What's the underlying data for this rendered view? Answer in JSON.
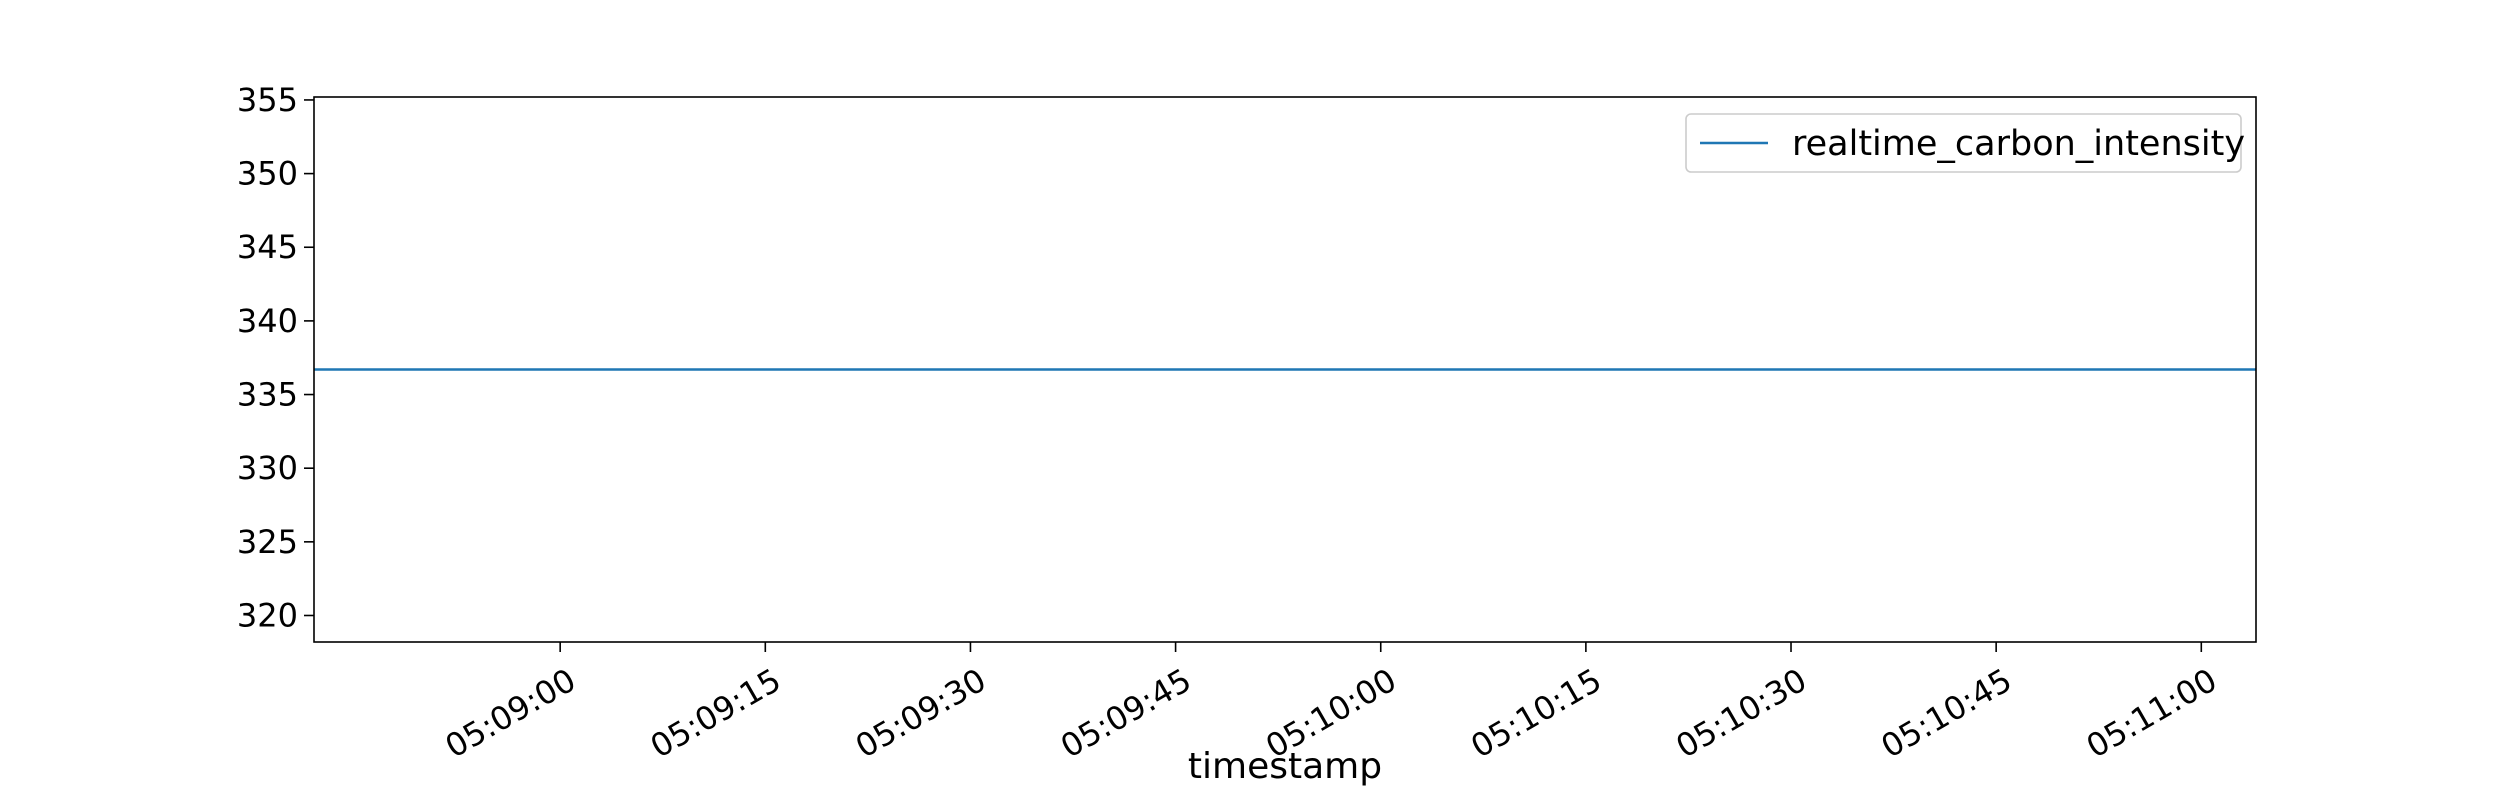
{
  "chart_data": {
    "type": "line",
    "title": "",
    "xlabel": "timestamp",
    "ylabel": "",
    "x_range": [
      "05:08:42",
      "05:11:04"
    ],
    "ylim": [
      318.2,
      355.2
    ],
    "x_ticks": [
      "05:09:00",
      "05:09:15",
      "05:09:30",
      "05:09:45",
      "05:10:00",
      "05:10:15",
      "05:10:30",
      "05:10:45",
      "05:11:00"
    ],
    "y_ticks": [
      320,
      325,
      330,
      335,
      340,
      345,
      350,
      355
    ],
    "grid": false,
    "legend_position": "top-right",
    "series": [
      {
        "name": "realtime_carbon_intensity",
        "color": "#1f77b4",
        "x": [
          "05:08:42",
          "05:11:04"
        ],
        "y": [
          336.7,
          336.7
        ]
      }
    ]
  }
}
